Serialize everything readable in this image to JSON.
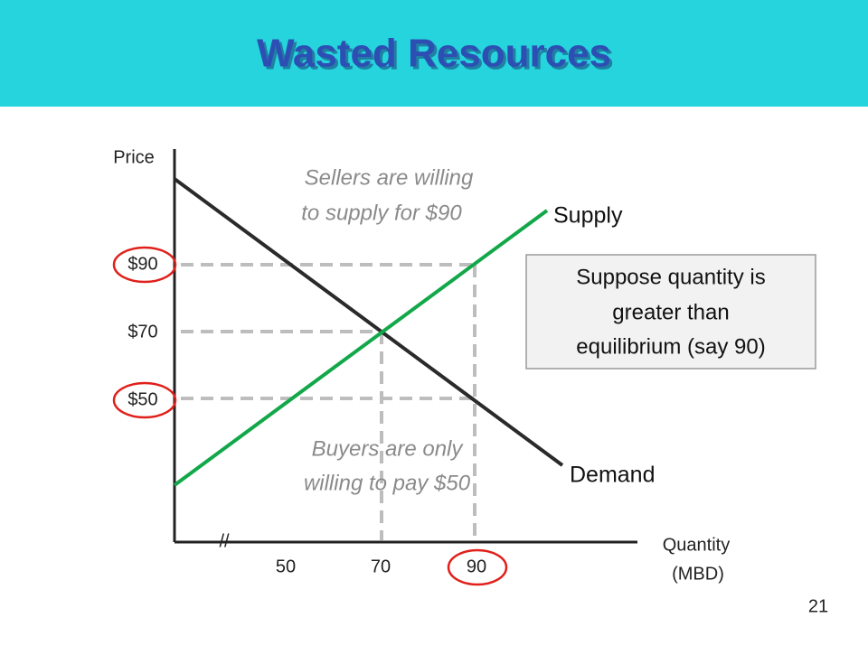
{
  "header": {
    "title": "Wasted Resources"
  },
  "diagram": {
    "y_axis_label": "Price",
    "x_axis_label": [
      "Quantity",
      "(MBD)"
    ],
    "axis_break": "//",
    "price_labels": [
      "$90",
      "$70",
      "$50"
    ],
    "quantity_labels": [
      "50",
      "70",
      "90"
    ],
    "supply_label": "Supply",
    "demand_label": "Demand",
    "sellers_note": [
      "Sellers are willing",
      "to supply for $90"
    ],
    "buyers_note": [
      "Buyers are only",
      "willing to pay $50"
    ],
    "callout": [
      "Suppose quantity is",
      "greater than",
      "equilibrium (say 90)"
    ]
  },
  "page_number": "21"
}
